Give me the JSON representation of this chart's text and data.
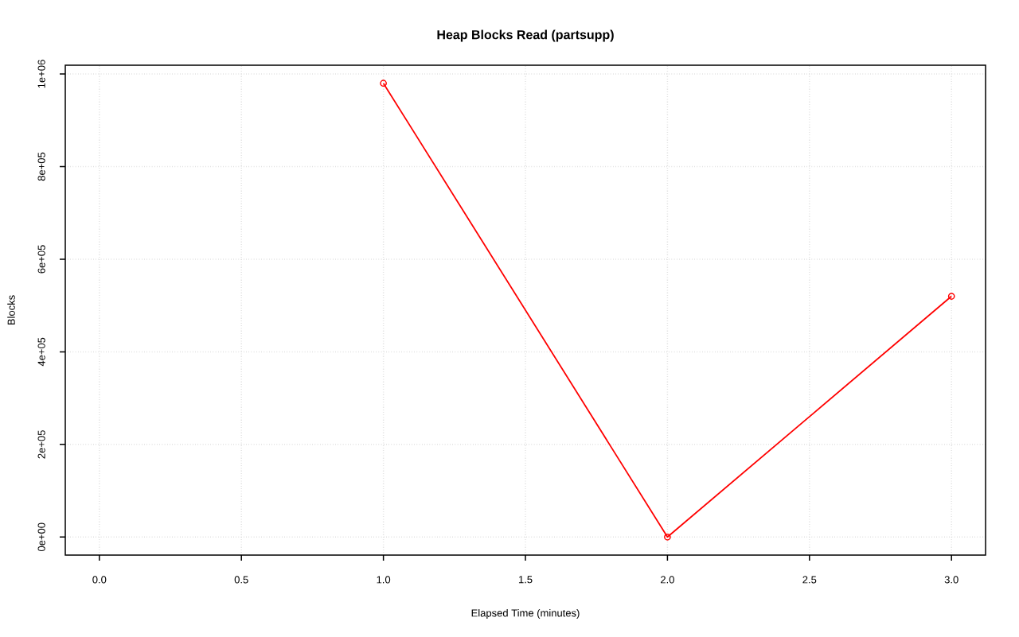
{
  "chart_data": {
    "type": "line",
    "title": "Heap Blocks Read (partsupp)",
    "xlabel": "Elapsed Time (minutes)",
    "ylabel": "Blocks",
    "x": [
      1,
      2,
      3
    ],
    "series": [
      {
        "color": "#ff0000",
        "values": [
          980000,
          0,
          520000
        ]
      }
    ],
    "xlim": [
      -0.12,
      3.12
    ],
    "ylim": [
      -39000,
      1019000
    ],
    "xticks": [
      {
        "value": 0,
        "label": "0.0"
      },
      {
        "value": 0.5,
        "label": "0.5"
      },
      {
        "value": 1,
        "label": "1.0"
      },
      {
        "value": 1.5,
        "label": "1.5"
      },
      {
        "value": 2,
        "label": "2.0"
      },
      {
        "value": 2.5,
        "label": "2.5"
      },
      {
        "value": 3,
        "label": "3.0"
      }
    ],
    "yticks": [
      {
        "value": 0,
        "label": "0e+00"
      },
      {
        "value": 200000,
        "label": "2e+05"
      },
      {
        "value": 400000,
        "label": "4e+05"
      },
      {
        "value": 600000,
        "label": "6e+05"
      },
      {
        "value": 800000,
        "label": "8e+05"
      },
      {
        "value": 1000000,
        "label": "1e+06"
      }
    ],
    "grid": true,
    "marker": "circle",
    "line_style": "solid"
  }
}
